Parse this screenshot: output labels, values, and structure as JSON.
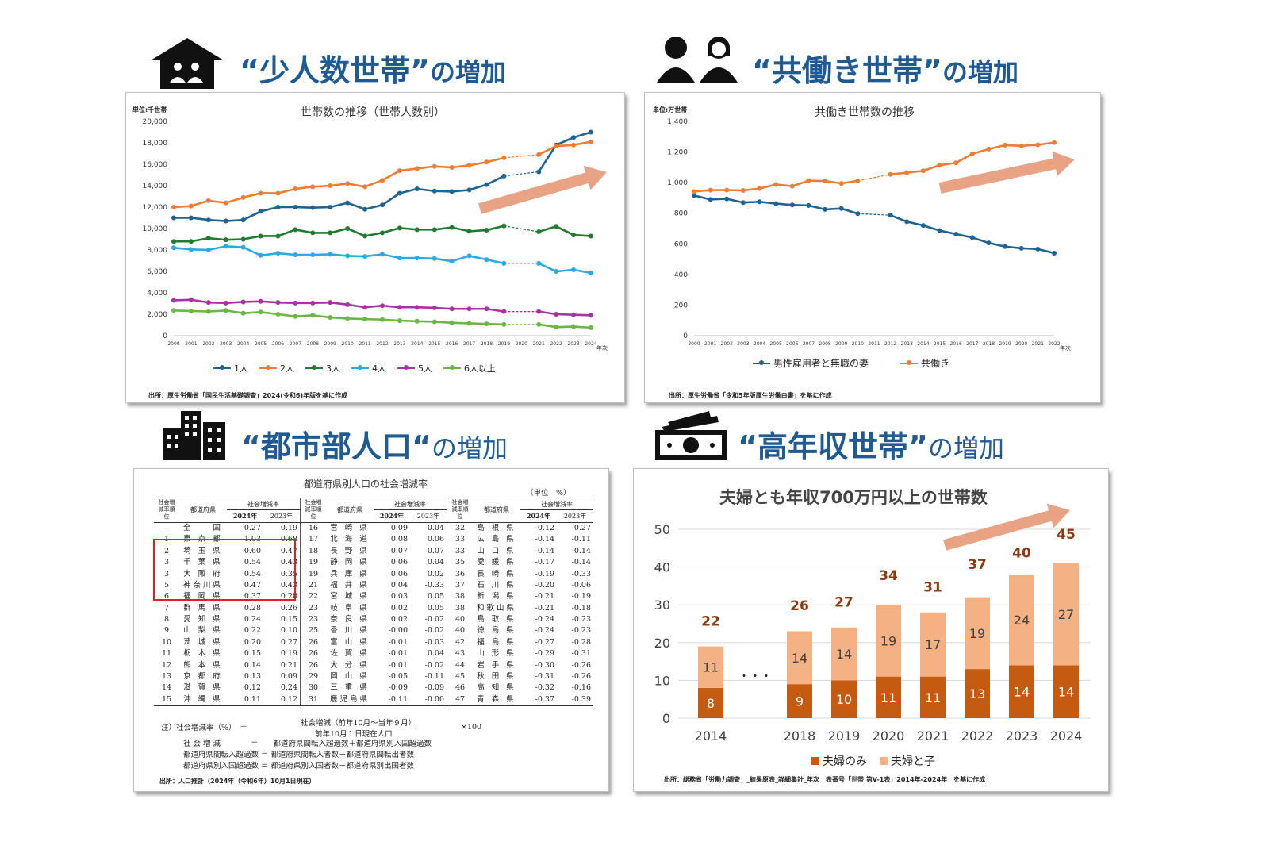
{
  "headings": {
    "h1": {
      "title": "“少人数世帯”",
      "suffix": "の増加"
    },
    "h2": {
      "title": "“共働き世帯”",
      "suffix": "の増加"
    },
    "h3": {
      "title": "“都市部人口“",
      "suffix": "の増加"
    },
    "h4": {
      "title": "“高年収世帯”",
      "suffix": "の増加"
    }
  },
  "icons": {
    "h1": "house-family-icon",
    "h2": "couple-icon",
    "h3": "buildings-icon",
    "h4": "money-icon"
  },
  "colors": {
    "heading": "#1f5a92",
    "arrow": "#e8a384",
    "p1": "#1f6391",
    "p2": "#ed7d31",
    "p3": "#1e7b30",
    "p4": "#2ca9e0",
    "p5": "#a833a0",
    "p6": "#6ab842",
    "bar_dark": "#c55a11",
    "bar_light": "#f4b183"
  },
  "chart_data": [
    {
      "type": "line",
      "title": "世帯数の推移（世帯人数別）",
      "unit": "単位:千世帯",
      "xlabel": "年次",
      "x": [
        "2000",
        "2001",
        "2002",
        "2003",
        "2004",
        "2005",
        "2006",
        "2007",
        "2008",
        "2009",
        "2010",
        "2011",
        "2012",
        "2013",
        "2014",
        "2015",
        "2016",
        "2017",
        "2018",
        "2019",
        "2020",
        "2021",
        "2022",
        "2023",
        "2024"
      ],
      "ylim": [
        0,
        20000
      ],
      "yticks": [
        "0",
        "2,000",
        "4,000",
        "6,000",
        "8,000",
        "10,000",
        "12,000",
        "14,000",
        "16,000",
        "18,000",
        "20,000"
      ],
      "series": [
        {
          "name": "1人",
          "values": [
            11000,
            11000,
            10800,
            10700,
            10800,
            11600,
            12000,
            12000,
            11950,
            12000,
            12400,
            11800,
            12200,
            13300,
            13700,
            13500,
            13450,
            13600,
            14100,
            14900,
            null,
            15300,
            17800,
            18500,
            19000
          ]
        },
        {
          "name": "2人",
          "values": [
            12000,
            12100,
            12600,
            12400,
            12900,
            13300,
            13300,
            13700,
            13900,
            14000,
            14200,
            13900,
            14500,
            15400,
            15600,
            15800,
            15700,
            15900,
            16200,
            16600,
            null,
            16900,
            17700,
            17800,
            18100
          ]
        },
        {
          "name": "3人",
          "values": [
            8800,
            8800,
            9100,
            8950,
            9000,
            9300,
            9300,
            9900,
            9600,
            9600,
            10000,
            9300,
            9600,
            10050,
            9900,
            9900,
            10100,
            9750,
            9850,
            10250,
            null,
            9700,
            10200,
            9400,
            9300
          ]
        },
        {
          "name": "4人",
          "values": [
            8200,
            8050,
            8000,
            8350,
            8250,
            7500,
            7700,
            7550,
            7550,
            7600,
            7450,
            7400,
            7600,
            7250,
            7250,
            7200,
            6950,
            7450,
            7100,
            6750,
            null,
            6750,
            6000,
            6150,
            5850
          ]
        },
        {
          "name": "5人",
          "values": [
            3300,
            3350,
            3100,
            3050,
            3150,
            3200,
            3100,
            3050,
            3050,
            3100,
            2900,
            2650,
            2800,
            2650,
            2650,
            2600,
            2500,
            2500,
            2500,
            2250,
            null,
            2250,
            2000,
            1950,
            1900
          ]
        },
        {
          "name": "6人以上",
          "values": [
            2350,
            2300,
            2250,
            2350,
            2100,
            2200,
            2000,
            1800,
            1900,
            1700,
            1600,
            1550,
            1500,
            1400,
            1350,
            1300,
            1200,
            1150,
            1100,
            1050,
            null,
            1050,
            800,
            850,
            750
          ]
        }
      ],
      "source": "出所：厚生労働省「国民生活基礎調査」2024(令和6)年版を基に作成"
    },
    {
      "type": "line",
      "title": "共働き世帯数の推移",
      "unit": "単位:万世帯",
      "xlabel": "年次",
      "x": [
        "2000",
        "2001",
        "2002",
        "2003",
        "2004",
        "2005",
        "2006",
        "2007",
        "2008",
        "2009",
        "2010",
        "2011",
        "2012",
        "2013",
        "2014",
        "2015",
        "2016",
        "2017",
        "2018",
        "2019",
        "2020",
        "2021",
        "2022"
      ],
      "ylim": [
        0,
        1400
      ],
      "yticks": [
        "0",
        "200",
        "400",
        "600",
        "800",
        "1,000",
        "1,200",
        "1,400"
      ],
      "series": [
        {
          "name": "男性雇用者と無職の妻",
          "values": [
            916,
            890,
            894,
            870,
            875,
            863,
            854,
            851,
            825,
            831,
            797,
            null,
            787,
            745,
            720,
            687,
            664,
            641,
            606,
            582,
            571,
            566,
            539
          ]
        },
        {
          "name": "共働き",
          "values": [
            942,
            951,
            951,
            949,
            961,
            988,
            977,
            1013,
            1011,
            995,
            1012,
            null,
            1054,
            1065,
            1077,
            1114,
            1129,
            1188,
            1219,
            1245,
            1240,
            1247,
            1262
          ]
        }
      ],
      "source": "出所：厚生労働省「令和5年版厚生労働白書」を基に作成"
    },
    {
      "type": "table",
      "title": "都道府県別人口の社会増減率",
      "unit": "（単位　%）",
      "headers": {
        "rank": "社会増減率順位",
        "pref": "都道府県",
        "rate": "社会増減率",
        "y1": "2024年",
        "y2": "2023年"
      },
      "rows": [
        [
          "―",
          "全　　国",
          "0.27",
          "0.19",
          "16",
          "宮 崎 県",
          "0.09",
          "-0.04",
          "32",
          "島 根 県",
          "-0.12",
          "-0.27"
        ],
        [
          "1",
          "東 京 都",
          "1.03",
          "0.68",
          "17",
          "北 海 道",
          "0.08",
          "0.06",
          "33",
          "広 島 県",
          "-0.14",
          "-0.11"
        ],
        [
          "2",
          "埼 玉 県",
          "0.60",
          "0.47",
          "18",
          "長 野 県",
          "0.07",
          "0.07",
          "33",
          "山 口 県",
          "-0.14",
          "-0.14"
        ],
        [
          "3",
          "千 葉 県",
          "0.54",
          "0.43",
          "19",
          "静 岡 県",
          "0.06",
          "0.04",
          "35",
          "愛 媛 県",
          "-0.17",
          "-0.14"
        ],
        [
          "3",
          "大 阪 府",
          "0.54",
          "0.35",
          "19",
          "兵 庫 県",
          "0.06",
          "0.02",
          "36",
          "長 崎 県",
          "-0.19",
          "-0.33"
        ],
        [
          "5",
          "神奈川県",
          "0.47",
          "0.43",
          "21",
          "福 井 県",
          "0.04",
          "-0.33",
          "37",
          "石 川 県",
          "-0.20",
          "-0.06"
        ],
        [
          "6",
          "福 岡 県",
          "0.37",
          "0.28",
          "22",
          "宮 城 県",
          "0.03",
          "0.05",
          "38",
          "新 潟 県",
          "-0.21",
          "-0.19"
        ],
        [
          "7",
          "群 馬 県",
          "0.28",
          "0.26",
          "23",
          "岐 阜 県",
          "0.02",
          "0.05",
          "38",
          "和歌山県",
          "-0.21",
          "-0.18"
        ],
        [
          "8",
          "愛 知 県",
          "0.24",
          "0.15",
          "23",
          "奈 良 県",
          "0.02",
          "-0.02",
          "40",
          "鳥 取 県",
          "-0.24",
          "-0.23"
        ],
        [
          "9",
          "山 梨 県",
          "0.22",
          "0.10",
          "25",
          "香 川 県",
          "-0.00",
          "-0.02",
          "40",
          "徳 島 県",
          "-0.24",
          "-0.23"
        ],
        [
          "10",
          "茨 城 県",
          "0.20",
          "0.27",
          "26",
          "富 山 県",
          "-0.01",
          "-0.03",
          "42",
          "福 島 県",
          "-0.27",
          "-0.28"
        ],
        [
          "11",
          "栃 木 県",
          "0.15",
          "0.19",
          "26",
          "佐 賀 県",
          "-0.01",
          "0.04",
          "43",
          "山 形 県",
          "-0.29",
          "-0.31"
        ],
        [
          "12",
          "熊 本 県",
          "0.14",
          "0.21",
          "26",
          "大 分 県",
          "-0.01",
          "-0.02",
          "44",
          "岩 手 県",
          "-0.30",
          "-0.26"
        ],
        [
          "13",
          "京 都 府",
          "0.13",
          "0.09",
          "29",
          "岡 山 県",
          "-0.05",
          "-0.11",
          "45",
          "秋 田 県",
          "-0.31",
          "-0.26"
        ],
        [
          "14",
          "滋 賀 県",
          "0.12",
          "0.24",
          "30",
          "三 重 県",
          "-0.09",
          "-0.09",
          "46",
          "高 知 県",
          "-0.32",
          "-0.16"
        ],
        [
          "15",
          "沖 縄 県",
          "0.11",
          "0.12",
          "31",
          "鹿児島県",
          "-0.11",
          "-0.00",
          "47",
          "青 森 県",
          "-0.37",
          "-0.39"
        ]
      ],
      "notes": {
        "label": "注）社会増減率（%）　＝",
        "num": "社会増減（前年10月～当年９月）",
        "den": "前年10月１日現在人口",
        "mult": "×100",
        "l1": "社 会 増 減　　　　＝　　都道府県間転入超過数＋都道府県別入国超過数",
        "l2": "都道府県間転入超過数 ＝ 都道府県間転入者数－都道府県間転出者数",
        "l3": "都道府県別入国超過数 ＝ 都道府県別入国者数－都道府県別出国者数"
      },
      "source": "出所：人口推計（2024年（令和6年）10月1日現在）"
    },
    {
      "type": "bar",
      "title": "夫婦とも年収700万円以上の世帯数",
      "categories": [
        "2014",
        "2018",
        "2019",
        "2020",
        "2021",
        "2022",
        "2023",
        "2024"
      ],
      "ylim": [
        0,
        50
      ],
      "yticks": [
        "0",
        "10",
        "20",
        "30",
        "40",
        "50"
      ],
      "series": [
        {
          "name": "夫婦のみ",
          "values": [
            8,
            9,
            10,
            11,
            11,
            13,
            14,
            14
          ]
        },
        {
          "name": "夫婦と子",
          "values": [
            11,
            14,
            14,
            19,
            17,
            19,
            24,
            27
          ]
        }
      ],
      "totals": [
        22,
        26,
        27,
        34,
        31,
        37,
        40,
        45
      ],
      "ellipsis": "・・・",
      "source": "出所：総務省「労働力調査」_結果原表_詳細集計_年次　表番号「世帯 第V-1表」2014年-2024年　を基に作成"
    }
  ]
}
